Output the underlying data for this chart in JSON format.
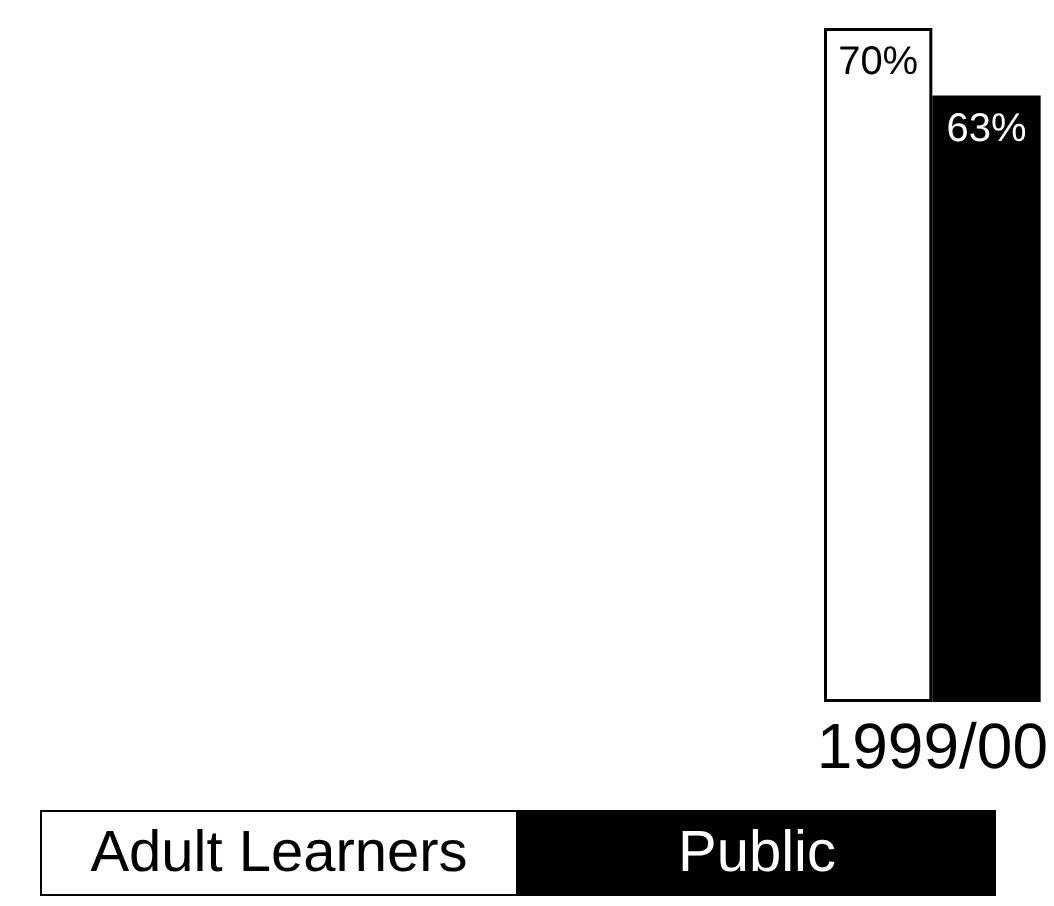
{
  "chart_data": {
    "type": "bar",
    "categories": [
      "1999/00"
    ],
    "series": [
      {
        "name": "Adult Learners",
        "color": "#ffffff",
        "values": [
          70
        ],
        "value_labels": [
          "70%"
        ]
      },
      {
        "name": "Public",
        "color": "#000000",
        "values": [
          63
        ],
        "value_labels": [
          "63%"
        ]
      }
    ],
    "legend": "bottom left",
    "tick_labels": "x"
  }
}
